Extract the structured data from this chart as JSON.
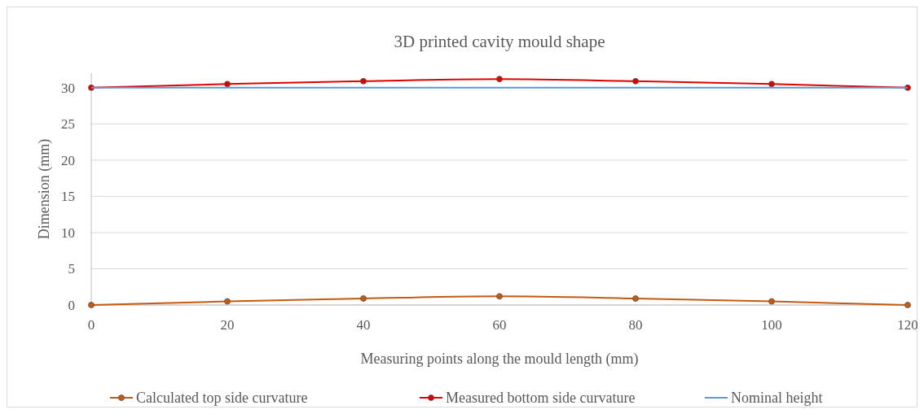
{
  "chart_data": {
    "type": "line",
    "title": "3D printed cavity mould shape",
    "xlabel": "Measuring points along the mould length (mm)",
    "ylabel": "Dimension (mm)",
    "x": [
      0,
      20,
      40,
      60,
      80,
      100,
      120
    ],
    "series": [
      {
        "name": "Calculated top side curvature",
        "color": "#c55a11",
        "marker": "circle",
        "values": [
          0,
          0.5,
          0.9,
          1.2,
          0.9,
          0.5,
          0
        ]
      },
      {
        "name": "Measured bottom side curvature",
        "color": "#e00000",
        "marker": "circle",
        "values": [
          30,
          30.5,
          30.9,
          31.2,
          30.9,
          30.5,
          30
        ]
      },
      {
        "name": "Nominal height",
        "color": "#5b9bd5",
        "marker": "none",
        "values": [
          30,
          30,
          30,
          30,
          30,
          30,
          30
        ]
      }
    ],
    "xlim": [
      0,
      120
    ],
    "xticks": [
      0,
      20,
      40,
      60,
      80,
      100,
      120
    ],
    "ylim": [
      0,
      32
    ],
    "yticks": [
      0,
      5,
      10,
      15,
      20,
      25,
      30
    ],
    "grid": "y",
    "legend": "bottom"
  }
}
